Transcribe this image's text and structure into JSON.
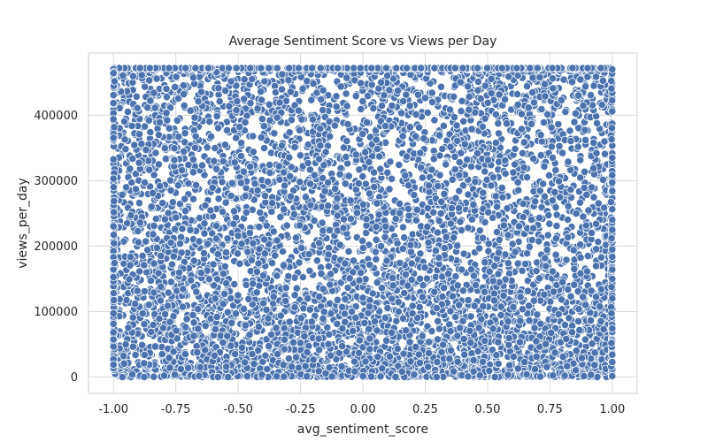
{
  "chart_data": {
    "type": "scatter",
    "title": "Average Sentiment Score vs Views per Day",
    "xlabel": "avg_sentiment_score",
    "ylabel": "views_per_day",
    "xlim": [
      -1.1,
      1.1
    ],
    "ylim": [
      -25000,
      495000
    ],
    "x_ticks": [
      -1.0,
      -0.75,
      -0.5,
      -0.25,
      0.0,
      0.25,
      0.5,
      0.75,
      1.0
    ],
    "x_tick_labels": [
      "-1.00",
      "-0.75",
      "-0.50",
      "-0.25",
      "0.00",
      "0.25",
      "0.50",
      "0.75",
      "1.00"
    ],
    "y_ticks": [
      0,
      100000,
      200000,
      300000,
      400000
    ],
    "y_tick_labels": [
      "0",
      "100000",
      "200000",
      "300000",
      "400000"
    ],
    "grid": true,
    "color": "#4c72b0",
    "x_range": [
      -1.0,
      1.0
    ],
    "y_range": [
      0,
      472000
    ],
    "y_cap": 472000,
    "points": [
      [
        -0.95,
        472000
      ],
      [
        -0.6,
        472000
      ],
      [
        -0.2,
        472000
      ],
      [
        0.1,
        472000
      ],
      [
        0.45,
        472000
      ],
      [
        0.8,
        472000
      ],
      [
        1.0,
        472000
      ],
      [
        -0.82,
        430000
      ],
      [
        -0.35,
        415000
      ],
      [
        0.2,
        440000
      ],
      [
        0.62,
        405000
      ],
      [
        -0.9,
        350000
      ],
      [
        -0.48,
        330000
      ],
      [
        0.05,
        360000
      ],
      [
        0.55,
        340000
      ],
      [
        0.95,
        320000
      ],
      [
        -0.7,
        260000
      ],
      [
        -0.1,
        240000
      ],
      [
        0.35,
        270000
      ],
      [
        0.85,
        250000
      ],
      [
        -0.98,
        180000
      ],
      [
        -0.55,
        160000
      ],
      [
        0.0,
        175000
      ],
      [
        0.5,
        150000
      ],
      [
        0.99,
        170000
      ],
      [
        -0.8,
        90000
      ],
      [
        -0.3,
        80000
      ],
      [
        0.25,
        95000
      ],
      [
        0.7,
        85000
      ],
      [
        -1.0,
        10000
      ],
      [
        -0.4,
        5000
      ],
      [
        0.15,
        20000
      ],
      [
        0.6,
        8000
      ],
      [
        1.0,
        15000
      ]
    ]
  }
}
